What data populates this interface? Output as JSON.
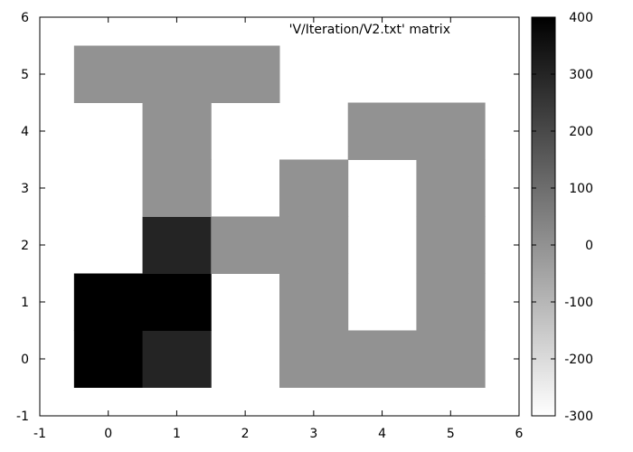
{
  "chart_data": {
    "type": "heatmap",
    "title": "'V/Iteration/V2.txt' matrix",
    "xlabel": "",
    "ylabel": "",
    "xlim": [
      -1,
      6
    ],
    "ylim": [
      -1,
      6
    ],
    "xticks": [
      "-1",
      "0",
      "1",
      "2",
      "3",
      "4",
      "5",
      "6"
    ],
    "yticks": [
      "-1",
      "0",
      "1",
      "2",
      "3",
      "4",
      "5",
      "6"
    ],
    "colorbar": {
      "min": -300,
      "max": 400,
      "ticks": [
        "-300",
        "-200",
        "-100",
        "0",
        "100",
        "200",
        "300",
        "400"
      ],
      "low_color": "#ffffff",
      "high_color": "#000000"
    },
    "grid": false,
    "missing_value": "blank (white)",
    "cells": [
      {
        "x": 0,
        "y": 0,
        "value": 400
      },
      {
        "x": 1,
        "y": 0,
        "value": 300
      },
      {
        "x": 3,
        "y": 0,
        "value": 0
      },
      {
        "x": 4,
        "y": 0,
        "value": 0
      },
      {
        "x": 5,
        "y": 0,
        "value": 0
      },
      {
        "x": 0,
        "y": 1,
        "value": 400
      },
      {
        "x": 1,
        "y": 1,
        "value": 400
      },
      {
        "x": 3,
        "y": 1,
        "value": 0
      },
      {
        "x": 5,
        "y": 1,
        "value": 0
      },
      {
        "x": 1,
        "y": 2,
        "value": 300
      },
      {
        "x": 2,
        "y": 2,
        "value": 0
      },
      {
        "x": 3,
        "y": 2,
        "value": 0
      },
      {
        "x": 5,
        "y": 2,
        "value": 0
      },
      {
        "x": 1,
        "y": 3,
        "value": 0
      },
      {
        "x": 3,
        "y": 3,
        "value": 0
      },
      {
        "x": 5,
        "y": 3,
        "value": 0
      },
      {
        "x": 1,
        "y": 4,
        "value": 0
      },
      {
        "x": 4,
        "y": 4,
        "value": 0
      },
      {
        "x": 5,
        "y": 4,
        "value": 0
      },
      {
        "x": 0,
        "y": 5,
        "value": 0
      },
      {
        "x": 1,
        "y": 5,
        "value": 0
      },
      {
        "x": 2,
        "y": 5,
        "value": 0
      }
    ]
  }
}
